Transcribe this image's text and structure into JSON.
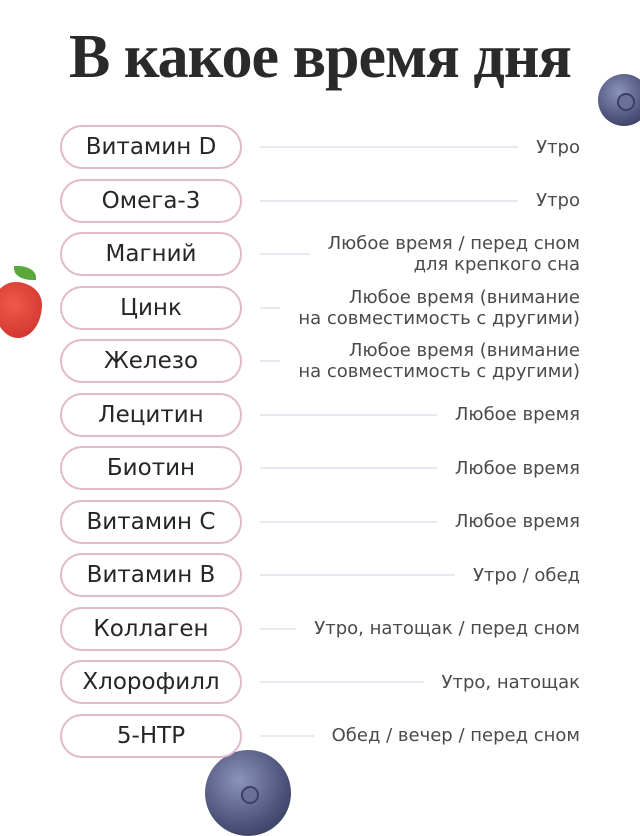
{
  "title": "В какое время дня",
  "colors": {
    "pill_border": "#e2b9c8",
    "line": "#e6e9f1",
    "text": "#262626"
  },
  "items": [
    {
      "name": "Витамин D",
      "time": "Утро"
    },
    {
      "name": "Омега-3",
      "time": "Утро"
    },
    {
      "name": "Магний",
      "time": "Любое время / перед сном\nдля крепкого сна"
    },
    {
      "name": "Цинк",
      "time": "Любое время (внимание\nна совместимость с другими)"
    },
    {
      "name": "Железо",
      "time": "Любое время (внимание\nна совместимость с другими)"
    },
    {
      "name": "Лецитин",
      "time": "Любое время"
    },
    {
      "name": "Биотин",
      "time": "Любое время"
    },
    {
      "name": "Витамин C",
      "time": "Любое время"
    },
    {
      "name": "Витамин B",
      "time": "Утро / обед"
    },
    {
      "name": "Коллаген",
      "time": "Утро, натощак / перед сном"
    },
    {
      "name": "Хлорофилл",
      "time": "Утро, натощак"
    },
    {
      "name": "5-HTP",
      "time": "Обед / вечер / перед сном"
    }
  ]
}
